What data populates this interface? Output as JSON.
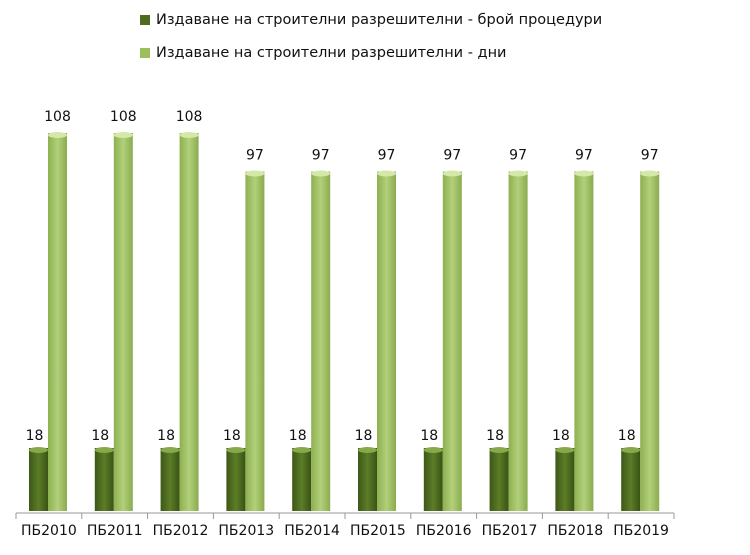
{
  "chart_data": {
    "type": "bar",
    "categories": [
      "ПБ2010",
      "ПБ2011",
      "ПБ2012",
      "ПБ2013",
      "ПБ2014",
      "ПБ2015",
      "ПБ2016",
      "ПБ2017",
      "ПБ2018",
      "ПБ2019"
    ],
    "series": [
      {
        "name": "Издаване на строителни разрешителни - брой процедури",
        "values": [
          18,
          18,
          18,
          18,
          18,
          18,
          18,
          18,
          18,
          18
        ],
        "color": "#4e6b1f"
      },
      {
        "name": "Издаване на строителни разрешителни - дни",
        "values": [
          108,
          108,
          108,
          97,
          97,
          97,
          97,
          97,
          97,
          97
        ],
        "color": "#9cbf5e"
      }
    ],
    "ylim": [
      0,
      110
    ],
    "grid": false,
    "data_labels": true,
    "legend": "top"
  }
}
